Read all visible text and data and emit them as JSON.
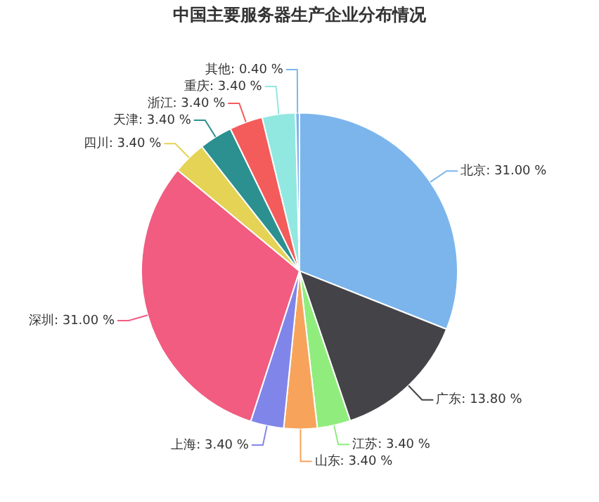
{
  "chart_data": {
    "type": "pie",
    "title": "中国主要服务器生产企业分布情况",
    "categories": [
      "北京",
      "广东",
      "江苏",
      "山东",
      "上海",
      "深圳",
      "四川",
      "天津",
      "浙江",
      "重庆",
      "其他"
    ],
    "values": [
      31,
      13.8,
      3.4,
      3.4,
      3.4,
      31,
      3.4,
      3.4,
      3.4,
      3.4,
      0.4
    ],
    "value_labels": [
      "31.00 %",
      "13.80 %",
      "3.40 %",
      "3.40 %",
      "3.40 %",
      "31.00 %",
      "3.40 %",
      "3.40 %",
      "3.40 %",
      "3.40 %",
      "0.40 %"
    ],
    "colors": [
      "#7cb5ec",
      "#434348",
      "#90ed7d",
      "#f7a35c",
      "#8085e9",
      "#f15c80",
      "#e4d354",
      "#2b908f",
      "#f45b5b",
      "#91e8e1",
      "#7cb5ec"
    ]
  }
}
